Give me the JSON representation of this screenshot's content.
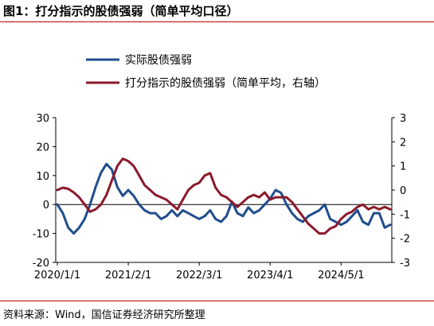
{
  "header": {
    "title": "图1：打分指示的股债强弱（简单平均口径）"
  },
  "footer": {
    "source": "资料来源：Wind，国信证券经济研究所整理"
  },
  "chart_data": {
    "type": "line",
    "title": "",
    "xlabel": "",
    "ylabel": "",
    "x_tick_labels": [
      "2020/1/1",
      "2021/2/1",
      "2022/3/1",
      "2023/4/1",
      "2024/5/1"
    ],
    "y_left": {
      "ylim": [
        -20,
        30
      ],
      "ticks": [
        "-20",
        "-10",
        "0",
        "10",
        "20",
        "30"
      ]
    },
    "y_right": {
      "ylim": [
        -3,
        3
      ],
      "ticks": [
        "-3",
        "-2",
        "-1",
        "0",
        "1",
        "2",
        "3"
      ]
    },
    "grid": false,
    "legend_position": "top-left",
    "series": [
      {
        "name": "实际股债强弱",
        "color": "#1f4e8c",
        "axis": "left",
        "x": [
          "2020/01",
          "2020/02",
          "2020/03",
          "2020/04",
          "2020/05",
          "2020/06",
          "2020/07",
          "2020/08",
          "2020/09",
          "2020/10",
          "2020/11",
          "2020/12",
          "2021/01",
          "2021/02",
          "2021/03",
          "2021/04",
          "2021/05",
          "2021/06",
          "2021/07",
          "2021/08",
          "2021/09",
          "2021/10",
          "2021/11",
          "2021/12",
          "2022/01",
          "2022/02",
          "2022/03",
          "2022/04",
          "2022/05",
          "2022/06",
          "2022/07",
          "2022/08",
          "2022/09",
          "2022/10",
          "2022/11",
          "2022/12",
          "2023/01",
          "2023/02",
          "2023/03",
          "2023/04",
          "2023/05",
          "2023/06",
          "2023/07",
          "2023/08",
          "2023/09",
          "2023/10",
          "2023/11",
          "2023/12",
          "2024/01",
          "2024/02",
          "2024/03",
          "2024/04",
          "2024/05",
          "2024/06",
          "2024/07",
          "2024/08",
          "2024/09",
          "2024/10",
          "2024/11",
          "2024/12",
          "2025/01",
          "2025/02"
        ],
        "values": [
          0,
          -3,
          -8,
          -10,
          -8,
          -5,
          0,
          6,
          11,
          14,
          12,
          6,
          3,
          5,
          3,
          0,
          -2,
          -3,
          -3,
          -5,
          -4,
          -2,
          -4,
          -2,
          -3,
          -4,
          -5,
          -4,
          -2,
          -5,
          -6,
          -4,
          1,
          -3,
          -4,
          -1,
          -3,
          -2,
          0,
          2,
          5,
          4,
          0,
          -3,
          -5,
          -6,
          -4,
          -3,
          -2,
          0,
          -5,
          -6,
          -7,
          -6,
          -4,
          -2,
          -6,
          -7,
          -3,
          -3,
          -8,
          -7
        ],
        "ylim": [
          -20,
          30
        ]
      },
      {
        "name": "打分指示的股债强弱（简单平均，右轴）",
        "color": "#8b1a2b",
        "axis": "right",
        "x": [
          "2020/01",
          "2020/02",
          "2020/03",
          "2020/04",
          "2020/05",
          "2020/06",
          "2020/07",
          "2020/08",
          "2020/09",
          "2020/10",
          "2020/11",
          "2020/12",
          "2021/01",
          "2021/02",
          "2021/03",
          "2021/04",
          "2021/05",
          "2021/06",
          "2021/07",
          "2021/08",
          "2021/09",
          "2021/10",
          "2021/11",
          "2021/12",
          "2022/01",
          "2022/02",
          "2022/03",
          "2022/04",
          "2022/05",
          "2022/06",
          "2022/07",
          "2022/08",
          "2022/09",
          "2022/10",
          "2022/11",
          "2022/12",
          "2023/01",
          "2023/02",
          "2023/03",
          "2023/04",
          "2023/05",
          "2023/06",
          "2023/07",
          "2023/08",
          "2023/09",
          "2023/10",
          "2023/11",
          "2023/12",
          "2024/01",
          "2024/02",
          "2024/03",
          "2024/04",
          "2024/05",
          "2024/06",
          "2024/07",
          "2024/08",
          "2024/09",
          "2024/10",
          "2024/11",
          "2024/12",
          "2025/01",
          "2025/02"
        ],
        "values": [
          0,
          0.1,
          0.05,
          -0.1,
          -0.3,
          -0.6,
          -0.9,
          -0.8,
          -0.6,
          -0.2,
          0.4,
          1.0,
          1.3,
          1.2,
          1.0,
          0.6,
          0.2,
          0,
          -0.2,
          -0.3,
          -0.4,
          -0.6,
          -0.8,
          -0.4,
          0,
          0.2,
          0.3,
          0.6,
          0.7,
          0.1,
          -0.2,
          -0.3,
          -0.5,
          -0.7,
          -0.5,
          -0.3,
          -0.2,
          -0.3,
          -0.1,
          -0.4,
          -0.3,
          -0.3,
          -0.3,
          -0.5,
          -0.8,
          -1.1,
          -1.4,
          -1.6,
          -1.8,
          -1.8,
          -1.6,
          -1.5,
          -1.2,
          -1.0,
          -0.9,
          -0.7,
          -0.6,
          -0.8,
          -0.7,
          -0.8,
          -0.7,
          -0.8
        ],
        "ylim": [
          -3,
          3
        ]
      }
    ]
  }
}
